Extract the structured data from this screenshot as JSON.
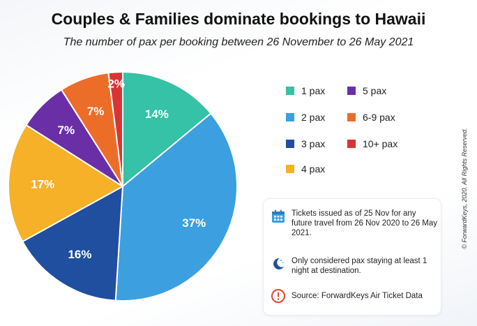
{
  "title": "Couples & Families dominate bookings to Hawaii",
  "subtitle": "The number of pax per booking between 26 November to 26 May 2021",
  "chart_data": {
    "type": "pie",
    "categories": [
      "1 pax",
      "2 pax",
      "3 pax",
      "4 pax",
      "5 pax",
      "6-9 pax",
      "10+ pax"
    ],
    "values": [
      14,
      37,
      16,
      17,
      7,
      7,
      2
    ],
    "value_labels": [
      "14%",
      "37%",
      "16%",
      "17%",
      "7%",
      "7%",
      "2%"
    ],
    "colors": [
      "#35c2a6",
      "#3b9fe0",
      "#1f4f9e",
      "#f6b128",
      "#6a2fa6",
      "#ec6d28",
      "#d93434"
    ],
    "legend_placement": "right"
  },
  "legend": [
    {
      "label": "1 pax",
      "color": "#35c2a6"
    },
    {
      "label": "5 pax",
      "color": "#6a2fa6"
    },
    {
      "label": "2 pax",
      "color": "#3b9fe0"
    },
    {
      "label": "6-9 pax",
      "color": "#ec6d28"
    },
    {
      "label": "3 pax",
      "color": "#1f4f9e"
    },
    {
      "label": "10+ pax",
      "color": "#d93434"
    },
    {
      "label": "4 pax",
      "color": "#f6b128"
    }
  ],
  "notes": [
    {
      "icon": "calendar-icon",
      "text": "Tickets issued as of 25 Nov for any future travel from 26 Nov 2020 to 26 May 2021."
    },
    {
      "icon": "moon-icon",
      "text": "Only considered pax staying at least 1 night at destination."
    },
    {
      "icon": "alert-icon",
      "text": "Source: ForwardKeys Air Ticket Data"
    }
  ],
  "copyright": "© ForwardKeys, 2020. All Rights Reserved."
}
